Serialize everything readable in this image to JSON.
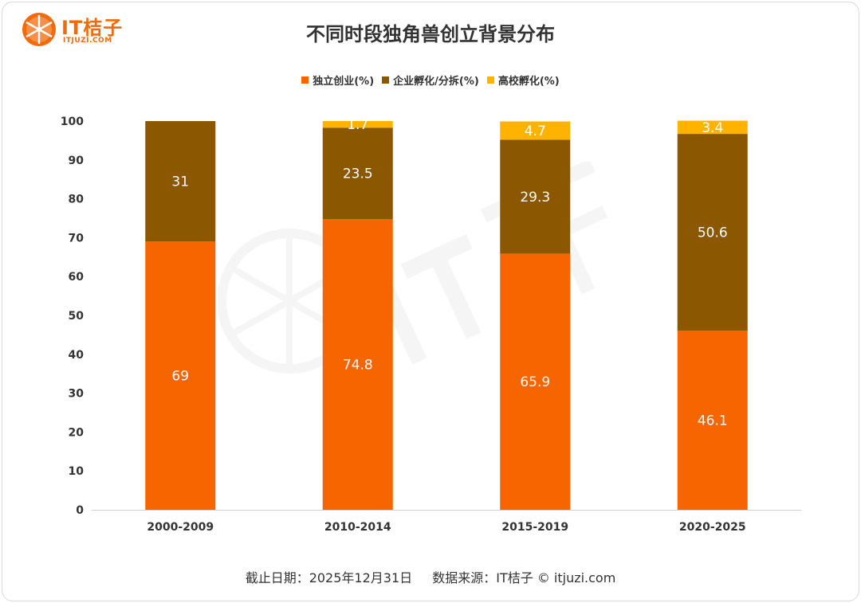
{
  "header": {
    "logo_text": "IT桔子",
    "logo_sub": "ITJUZI.COM",
    "title": "不同时段独角兽创立背景分布"
  },
  "colors": {
    "independent": "#f76500",
    "corporate": "#8b5700",
    "university": "#ffb300",
    "brand": "#f26a0a"
  },
  "footer": {
    "date": "截止日期：2025年12月31日",
    "source": "数据来源：IT桔子 © itjuzi.com"
  },
  "chart_data": {
    "type": "bar",
    "stacked": true,
    "categories": [
      "2000-2009",
      "2010-2014",
      "2015-2019",
      "2020-2025"
    ],
    "series": [
      {
        "name": "独立创业(%)",
        "values": [
          69,
          74.8,
          65.9,
          46.1
        ],
        "color": "#f76500"
      },
      {
        "name": "企业孵化/分拆(%)",
        "values": [
          31,
          23.5,
          29.3,
          50.6
        ],
        "color": "#8b5700"
      },
      {
        "name": "高校孵化(%)",
        "values": [
          0,
          1.7,
          4.7,
          3.4
        ],
        "color": "#ffb300"
      }
    ],
    "ylim": [
      0,
      100
    ],
    "yticks": [
      0,
      10,
      20,
      30,
      40,
      50,
      60,
      70,
      80,
      90,
      100
    ],
    "legend_position": "top",
    "grid": false
  }
}
